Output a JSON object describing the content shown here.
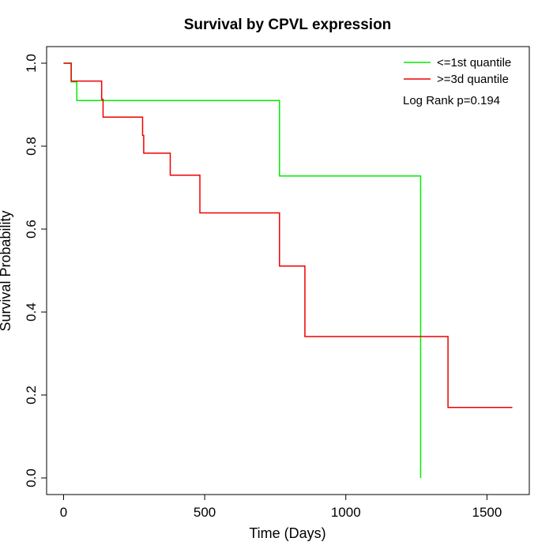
{
  "chart_data": {
    "type": "line",
    "subtype": "kaplan-meier-step",
    "title": "Survival by CPVL expression",
    "xlabel": "Time (Days)",
    "ylabel": "Survival Probability",
    "xlim": [
      -60,
      1650
    ],
    "ylim": [
      -0.04,
      1.04
    ],
    "xticks": [
      0,
      500,
      1000,
      1500
    ],
    "xtick_labels": [
      "0",
      "500",
      "1000",
      "1500"
    ],
    "yticks": [
      0.0,
      0.2,
      0.4,
      0.6,
      0.8,
      1.0
    ],
    "ytick_labels": [
      "0.0",
      "0.2",
      "0.4",
      "0.6",
      "0.8",
      "1.0"
    ],
    "grid": false,
    "legend_position": "top-right",
    "annotation": "Log Rank p=0.194",
    "series": [
      {
        "name": "<=1st quantile",
        "color": "#00ee00",
        "x": [
          0,
          27,
          27,
          47,
          47,
          765,
          765,
          1265,
          1265
        ],
        "y": [
          1.0,
          1.0,
          0.955,
          0.955,
          0.91,
          0.91,
          0.728,
          0.728,
          0.0
        ]
      },
      {
        "name": ">=3d quantile",
        "color": "#ee0000",
        "x": [
          0,
          27,
          27,
          135,
          135,
          140,
          140,
          280,
          280,
          284,
          284,
          378,
          378,
          483,
          483,
          765,
          765,
          855,
          855,
          1362,
          1362,
          1590
        ],
        "y": [
          1.0,
          1.0,
          0.957,
          0.957,
          0.913,
          0.913,
          0.87,
          0.87,
          0.826,
          0.826,
          0.783,
          0.783,
          0.73,
          0.73,
          0.639,
          0.639,
          0.511,
          0.511,
          0.341,
          0.341,
          0.17,
          0.17
        ]
      }
    ]
  }
}
